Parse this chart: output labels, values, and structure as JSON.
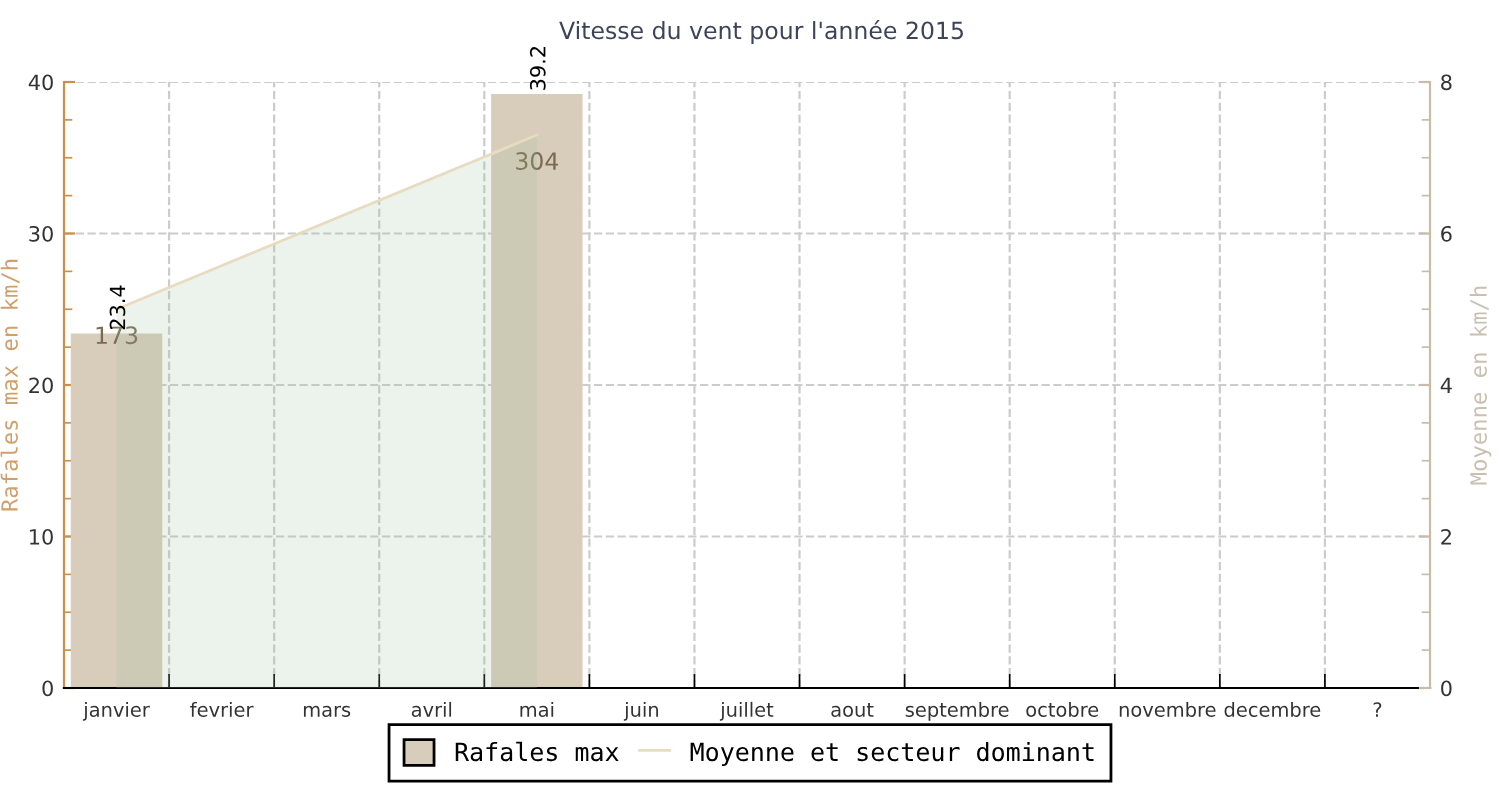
{
  "chart_data": {
    "type": "bar",
    "title": "Vitesse du vent pour l'année 2015",
    "ylabel": "Rafales max en km/h",
    "y2label": "Moyenne en km/h",
    "categories": [
      "janvier",
      "fevrier",
      "mars",
      "avril",
      "mai",
      "juin",
      "juillet",
      "aout",
      "septembre",
      "octobre",
      "novembre",
      "decembre",
      "?"
    ],
    "series": [
      {
        "name": "Rafales max",
        "color": "#d8ccba",
        "values": [
          23.4,
          null,
          null,
          null,
          39.2,
          null,
          null,
          null,
          null,
          null,
          null,
          null,
          null
        ],
        "value_labels": [
          "23.4",
          null,
          null,
          null,
          "39.2",
          null,
          null,
          null,
          null,
          null,
          null,
          null,
          null
        ]
      },
      {
        "name": "Moyenne et secteur dominant",
        "type": "area",
        "axis": "y2",
        "color": "#e8dcc0",
        "values": [
          5.0,
          null,
          null,
          null,
          7.3,
          null,
          null,
          null,
          null,
          null,
          null,
          null,
          null
        ]
      }
    ],
    "ylim": [
      0,
      40
    ],
    "yticks": [
      0,
      10,
      20,
      30,
      40
    ],
    "y2lim": [
      0,
      8
    ],
    "y2ticks": [
      0,
      2,
      4,
      6,
      8
    ],
    "grid": true,
    "legend": "bottom",
    "annotations": [
      {
        "text": "173",
        "x": "janvier",
        "y": 25
      },
      {
        "text": "304",
        "x": "mai",
        "y": 36.5
      }
    ]
  }
}
